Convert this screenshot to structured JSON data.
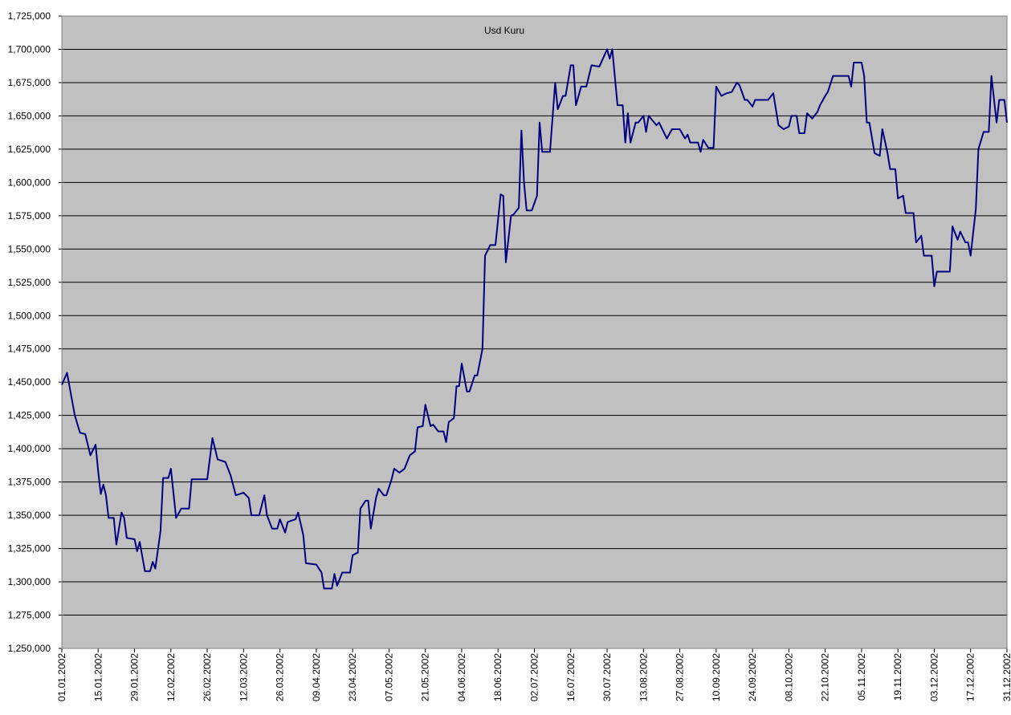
{
  "chart_data": {
    "type": "line",
    "title": "Usd Kuru",
    "xlim": [
      "01.01.2002",
      "31.12.2002"
    ],
    "xticks": [
      "01.01.2002",
      "15.01.2002",
      "29.01.2002",
      "12.02.2002",
      "26.02.2002",
      "12.03.2002",
      "26.03.2002",
      "09.04.2002",
      "23.04.2002",
      "07.05.2002",
      "21.05.2002",
      "04.06.2002",
      "18.06.2002",
      "02.07.2002",
      "16.07.2002",
      "30.07.2002",
      "13.08.2002",
      "27.08.2002",
      "10.09.2002",
      "24.09.2002",
      "08.10.2002",
      "22.10.2002",
      "05.11.2002",
      "19.11.2002",
      "03.12.2002",
      "17.12.2002",
      "31.12.2002"
    ],
    "ylim": [
      1250000,
      1725000
    ],
    "yticks": [
      {
        "value": 1250000,
        "label": "1,250,000"
      },
      {
        "value": 1275000,
        "label": "1,275,000"
      },
      {
        "value": 1300000,
        "label": "1,300,000"
      },
      {
        "value": 1325000,
        "label": "1,325,000"
      },
      {
        "value": 1350000,
        "label": "1,350,000"
      },
      {
        "value": 1375000,
        "label": "1,375,000"
      },
      {
        "value": 1400000,
        "label": "1,400,000"
      },
      {
        "value": 1425000,
        "label": "1,425,000"
      },
      {
        "value": 1450000,
        "label": "1,450,000"
      },
      {
        "value": 1475000,
        "label": "1,475,000"
      },
      {
        "value": 1500000,
        "label": "1,500,000"
      },
      {
        "value": 1525000,
        "label": "1,525,000"
      },
      {
        "value": 1550000,
        "label": "1,550,000"
      },
      {
        "value": 1575000,
        "label": "1,575,000"
      },
      {
        "value": 1600000,
        "label": "1,600,000"
      },
      {
        "value": 1625000,
        "label": "1,625,000"
      },
      {
        "value": 1650000,
        "label": "1,650,000"
      },
      {
        "value": 1675000,
        "label": "1,675,000"
      },
      {
        "value": 1700000,
        "label": "1,700,000"
      },
      {
        "value": 1725000,
        "label": "1,725,000"
      }
    ],
    "grid": true,
    "background": "#c0c0c0",
    "color": "#000080",
    "x": [
      "01.01.2002",
      "03.01.2002",
      "06.01.2002",
      "08.01.2002",
      "10.01.2002",
      "12.01.2002",
      "14.01.2002",
      "15.01.2002",
      "16.01.2002",
      "17.01.2002",
      "18.01.2002",
      "19.01.2002",
      "21.01.2002",
      "22.01.2002",
      "23.01.2002",
      "24.01.2002",
      "25.01.2002",
      "26.01.2002",
      "29.01.2002",
      "30.01.2002",
      "31.01.2002",
      "02.02.2002",
      "04.02.2002",
      "05.02.2002",
      "06.02.2002",
      "08.02.2002",
      "09.02.2002",
      "11.02.2002",
      "12.02.2002",
      "14.02.2002",
      "16.02.2002",
      "19.02.2002",
      "20.02.2002",
      "26.02.2002",
      "28.02.2002",
      "02.03.2002",
      "05.03.2002",
      "07.03.2002",
      "09.03.2002",
      "12.03.2002",
      "14.03.2002",
      "15.03.2002",
      "18.03.2002",
      "20.03.2002",
      "21.03.2002",
      "23.03.2002",
      "25.03.2002",
      "26.03.2002",
      "28.03.2002",
      "29.03.2002",
      "01.04.2002",
      "02.04.2002",
      "04.04.2002",
      "05.04.2002",
      "09.04.2002",
      "11.04.2002",
      "12.04.2002",
      "15.04.2002",
      "16.04.2002",
      "17.04.2002",
      "19.04.2002",
      "22.04.2002",
      "23.04.2002",
      "25.04.2002",
      "26.04.2002",
      "28.04.2002",
      "29.04.2002",
      "30.04.2002",
      "02.05.2002",
      "03.05.2002",
      "05.05.2002",
      "06.05.2002",
      "08.05.2002",
      "09.05.2002",
      "11.05.2002",
      "13.05.2002",
      "15.05.2002",
      "17.05.2002",
      "18.05.2002",
      "20.05.2002",
      "21.05.2002",
      "23.05.2002",
      "24.05.2002",
      "26.05.2002",
      "28.05.2002",
      "29.05.2002",
      "30.05.2002",
      "01.06.2002",
      "02.06.2002",
      "03.06.2002",
      "04.06.2002",
      "06.06.2002",
      "07.06.2002",
      "09.06.2002",
      "10.06.2002",
      "12.06.2002",
      "13.06.2002",
      "15.06.2002",
      "17.06.2002",
      "19.06.2002",
      "20.06.2002",
      "21.06.2002",
      "23.06.2002",
      "24.06.2002",
      "26.06.2002",
      "27.06.2002",
      "28.06.2002",
      "29.06.2002",
      "01.07.2002",
      "03.07.2002",
      "04.07.2002",
      "05.07.2002",
      "08.07.2002",
      "10.07.2002",
      "11.07.2002",
      "13.07.2002",
      "14.07.2002",
      "16.07.2002",
      "17.07.2002",
      "18.07.2002",
      "20.07.2002",
      "22.07.2002",
      "24.07.2002",
      "27.07.2002",
      "30.07.2002",
      "31.07.2002",
      "01.08.2002",
      "03.08.2002",
      "05.08.2002",
      "06.08.2002",
      "07.08.2002",
      "08.08.2002",
      "10.08.2002",
      "11.08.2002",
      "13.08.2002",
      "14.08.2002",
      "15.08.2002",
      "18.08.2002",
      "19.08.2002",
      "21.08.2002",
      "22.08.2002",
      "24.08.2002",
      "27.08.2002",
      "29.08.2002",
      "30.08.2002",
      "31.08.2002",
      "03.09.2002",
      "04.09.2002",
      "05.09.2002",
      "07.09.2002",
      "09.09.2002",
      "10.09.2002",
      "12.09.2002",
      "14.09.2002",
      "16.09.2002",
      "18.09.2002",
      "19.09.2002",
      "21.09.2002",
      "22.09.2002",
      "24.09.2002",
      "25.09.2002",
      "30.09.2002",
      "02.10.2002",
      "04.10.2002",
      "06.10.2002",
      "08.10.2002",
      "09.10.2002",
      "11.10.2002",
      "12.10.2002",
      "14.10.2002",
      "15.10.2002",
      "17.10.2002",
      "19.10.2002",
      "20.10.2002",
      "22.10.2002",
      "23.10.2002",
      "25.10.2002",
      "31.10.2002",
      "01.11.2002",
      "02.11.2002",
      "05.11.2002",
      "06.11.2002",
      "07.11.2002",
      "08.11.2002",
      "10.11.2002",
      "12.11.2002",
      "13.11.2002",
      "15.11.2002",
      "16.11.2002",
      "18.11.2002",
      "19.11.2002",
      "21.11.2002",
      "22.11.2002",
      "25.11.2002",
      "26.11.2002",
      "28.11.2002",
      "29.11.2002",
      "02.12.2002",
      "03.12.2002",
      "04.12.2002",
      "09.12.2002",
      "10.12.2002",
      "12.12.2002",
      "13.12.2002",
      "15.12.2002",
      "16.12.2002",
      "17.12.2002",
      "19.12.2002",
      "20.12.2002",
      "22.12.2002",
      "24.12.2002",
      "25.12.2002",
      "27.12.2002",
      "28.12.2002",
      "30.12.2002",
      "31.12.2002"
    ],
    "values": [
      1448000,
      1457000,
      1425000,
      1412000,
      1411000,
      1395000,
      1403000,
      1383000,
      1366000,
      1373000,
      1365000,
      1348000,
      1348000,
      1328000,
      1340000,
      1352000,
      1348000,
      1333000,
      1332000,
      1323000,
      1330000,
      1308000,
      1308000,
      1315000,
      1310000,
      1338000,
      1378000,
      1378000,
      1385000,
      1348000,
      1355000,
      1355000,
      1377000,
      1377000,
      1408000,
      1392000,
      1390000,
      1380000,
      1365000,
      1367000,
      1363000,
      1350000,
      1350000,
      1365000,
      1350000,
      1340000,
      1340000,
      1347000,
      1337000,
      1345000,
      1347000,
      1352000,
      1335000,
      1314000,
      1313000,
      1307000,
      1295000,
      1295000,
      1306000,
      1297000,
      1307000,
      1307000,
      1320000,
      1322000,
      1355000,
      1361000,
      1361000,
      1340000,
      1363000,
      1370000,
      1365000,
      1365000,
      1377000,
      1385000,
      1382000,
      1385000,
      1395000,
      1398000,
      1416000,
      1417000,
      1433000,
      1417000,
      1418000,
      1413000,
      1413000,
      1405000,
      1420000,
      1423000,
      1447000,
      1447000,
      1464000,
      1443000,
      1443000,
      1455000,
      1455000,
      1475000,
      1545000,
      1553000,
      1553000,
      1591000,
      1590000,
      1540000,
      1575000,
      1576000,
      1581000,
      1639000,
      1600000,
      1579000,
      1579000,
      1590000,
      1645000,
      1623000,
      1623000,
      1675000,
      1655000,
      1665000,
      1665000,
      1688000,
      1688000,
      1658000,
      1672000,
      1672000,
      1688000,
      1687000,
      1700000,
      1693000,
      1700000,
      1658000,
      1658000,
      1630000,
      1652000,
      1630000,
      1645000,
      1645000,
      1650000,
      1638000,
      1650000,
      1643000,
      1645000,
      1637000,
      1633000,
      1640000,
      1640000,
      1633000,
      1636000,
      1630000,
      1630000,
      1623000,
      1632000,
      1626000,
      1626000,
      1672000,
      1665000,
      1667000,
      1668000,
      1675000,
      1673000,
      1662000,
      1662000,
      1657000,
      1662000,
      1662000,
      1667000,
      1643000,
      1640000,
      1642000,
      1650000,
      1650000,
      1637000,
      1637000,
      1652000,
      1648000,
      1653000,
      1658000,
      1665000,
      1668000,
      1680000,
      1680000,
      1672000,
      1690000,
      1690000,
      1680000,
      1645000,
      1645000,
      1622000,
      1620000,
      1640000,
      1622000,
      1610000,
      1610000,
      1588000,
      1590000,
      1577000,
      1577000,
      1555000,
      1560000,
      1545000,
      1545000,
      1522000,
      1533000,
      1533000,
      1567000,
      1557000,
      1563000,
      1555000,
      1555000,
      1545000,
      1580000,
      1625000,
      1638000,
      1638000,
      1680000,
      1645000,
      1662000,
      1662000,
      1645000
    ]
  }
}
